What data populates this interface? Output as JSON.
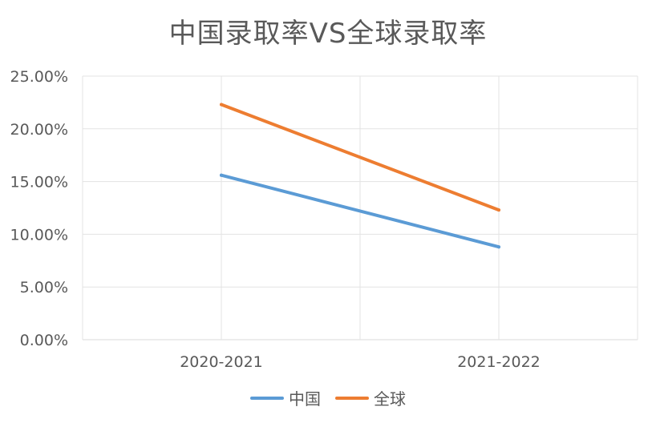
{
  "chart_data": {
    "type": "line",
    "title": "中国录取率VS全球录取率",
    "categories": [
      "2020-2021",
      "2021-2022"
    ],
    "series": [
      {
        "name": "中国",
        "values": [
          15.6,
          8.8
        ],
        "color": "#5B9BD5"
      },
      {
        "name": "全球",
        "values": [
          22.3,
          12.3
        ],
        "color": "#ED7D31"
      }
    ],
    "ylim": [
      0,
      25
    ],
    "yticks": [
      "0.00%",
      "5.00%",
      "10.00%",
      "15.00%",
      "20.00%",
      "25.00%"
    ],
    "grid": true,
    "legend": "bottom"
  }
}
